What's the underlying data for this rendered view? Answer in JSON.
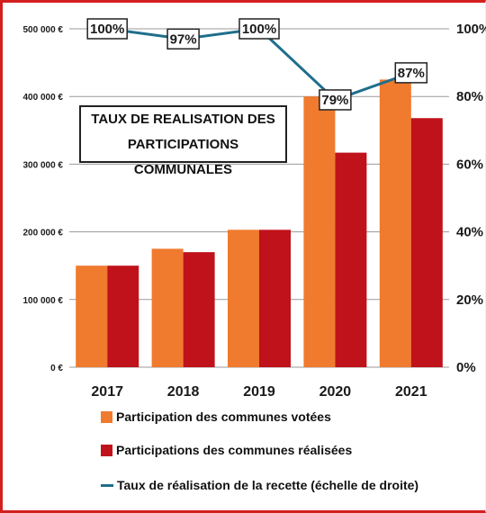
{
  "chart_data": {
    "type": "bar",
    "title_lines": [
      "TAUX DE REALISATION DES",
      "PARTICIPATIONS COMMUNALES"
    ],
    "categories": [
      "2017",
      "2018",
      "2019",
      "2020",
      "2021"
    ],
    "series": [
      {
        "name": "Participation des communes votées",
        "type": "bar",
        "axis": "left",
        "color": "#f07a2e",
        "values": [
          150000,
          175000,
          203000,
          400000,
          425000
        ]
      },
      {
        "name": "Participations des communes réalisées",
        "type": "bar",
        "axis": "left",
        "color": "#c0121a",
        "values": [
          150000,
          170000,
          203000,
          317000,
          368000
        ]
      },
      {
        "name": "Taux de réalisation de la recette (échelle de droite)",
        "type": "line",
        "axis": "right",
        "color": "#1f6e8c",
        "values": [
          100,
          97,
          100,
          79,
          87
        ]
      }
    ],
    "point_labels": [
      "100%",
      "97%",
      "100%",
      "79%",
      "87%"
    ],
    "y_left": {
      "ylim": [
        0,
        500000
      ],
      "ticks": [
        "0 €",
        "100 000 €",
        "200 000 €",
        "300 000 €",
        "400 000 €",
        "500 000 €"
      ]
    },
    "y_right": {
      "ylim": [
        0,
        100
      ],
      "ticks": [
        "0%",
        "20%",
        "40%",
        "60%",
        "80%",
        "100%"
      ]
    },
    "grid": true,
    "legend_position": "bottom"
  }
}
